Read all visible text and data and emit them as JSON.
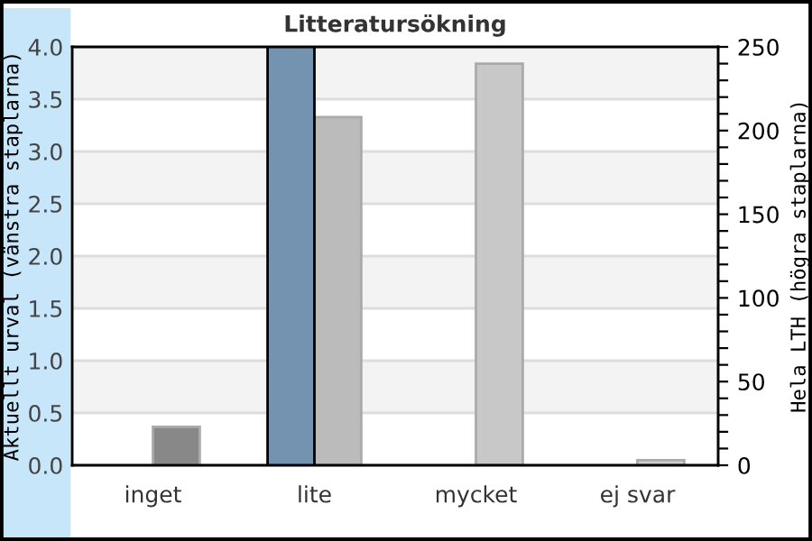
{
  "chart_data": {
    "type": "bar",
    "title": "Litteratursökning",
    "ylabel": "Aktuellt urval (vänstra staplarna)",
    "y2label": "Hela LTH (högra staplarna)",
    "categories": [
      "inget",
      "lite",
      "mycket",
      "ej svar"
    ],
    "series": [
      {
        "color": "#7393b0",
        "values": [
          null,
          4.0,
          null,
          null
        ]
      },
      {
        "axis": "y2",
        "colors": [
          "#888888",
          "#bbbbbb",
          "#c8c8c8",
          "#d0d0d0"
        ],
        "values": [
          23,
          208,
          240,
          3
        ]
      }
    ],
    "ylim": [
      0,
      4.0
    ],
    "yticks": [
      {
        "value": 0,
        "label": "0.0"
      },
      {
        "value": 0.5,
        "label": "0.5"
      },
      {
        "value": 1.0,
        "label": "1.0"
      },
      {
        "value": 1.5,
        "label": "1.5"
      },
      {
        "value": 2.0,
        "label": "2.0"
      },
      {
        "value": 2.5,
        "label": "2.5"
      },
      {
        "value": 3.0,
        "label": "3.0"
      },
      {
        "value": 3.5,
        "label": "3.5"
      },
      {
        "value": 4.0,
        "label": "4.0"
      }
    ],
    "y2lim": [
      0,
      250
    ],
    "y2ticks": [
      0,
      {
        "value": 10,
        "label": null
      },
      {
        "value": 20,
        "label": null
      },
      {
        "value": 30,
        "label": null
      },
      {
        "value": 40,
        "label": null
      },
      50,
      {
        "value": 60,
        "label": null
      },
      {
        "value": 70,
        "label": null
      },
      {
        "value": 80,
        "label": null
      },
      {
        "value": 90,
        "label": null
      },
      100,
      {
        "value": 110,
        "label": null
      },
      {
        "value": 120,
        "label": null
      },
      {
        "value": 130,
        "label": null
      },
      {
        "value": 140,
        "label": null
      },
      150,
      {
        "value": 160,
        "label": null
      },
      {
        "value": 170,
        "label": null
      },
      {
        "value": 180,
        "label": null
      },
      {
        "value": 190,
        "label": null
      },
      200,
      {
        "value": 210,
        "label": null
      },
      {
        "value": 220,
        "label": null
      },
      {
        "value": 230,
        "label": null
      },
      {
        "value": 240,
        "label": null
      },
      250
    ],
    "grid": "y",
    "legend": false
  }
}
